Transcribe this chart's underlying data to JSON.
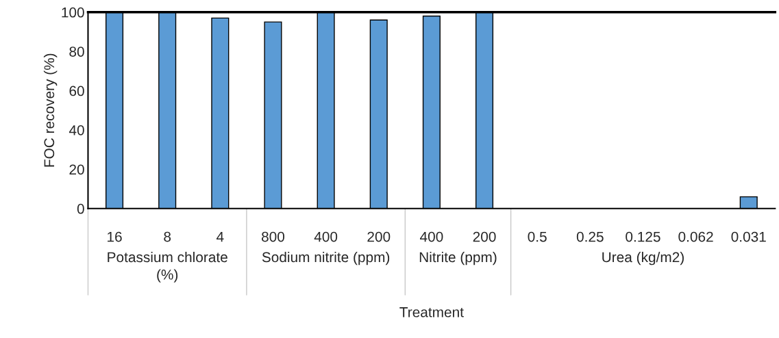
{
  "chart_data": {
    "type": "bar",
    "xlabel": "Treatment",
    "ylabel": "FOC recovery (%)",
    "categories": [
      "16",
      "8",
      "4",
      "800",
      "400",
      "200",
      "400",
      "200",
      "0.5",
      "0.25",
      "0.125",
      "0.062",
      "0.031"
    ],
    "values": [
      100,
      100,
      97,
      95,
      100,
      96,
      98,
      100,
      0,
      0,
      0,
      0,
      6
    ],
    "color": "#5b9bd5",
    "ylim": [
      0,
      100
    ],
    "yticks": [
      0,
      20,
      40,
      60,
      80,
      100
    ],
    "annotations": [
      "Potassium chlorate (%)",
      "Sodium nitrite (ppm)",
      "Nitrite (ppm)",
      "Urea (kg/m2)"
    ],
    "grid": false,
    "legend": false
  }
}
